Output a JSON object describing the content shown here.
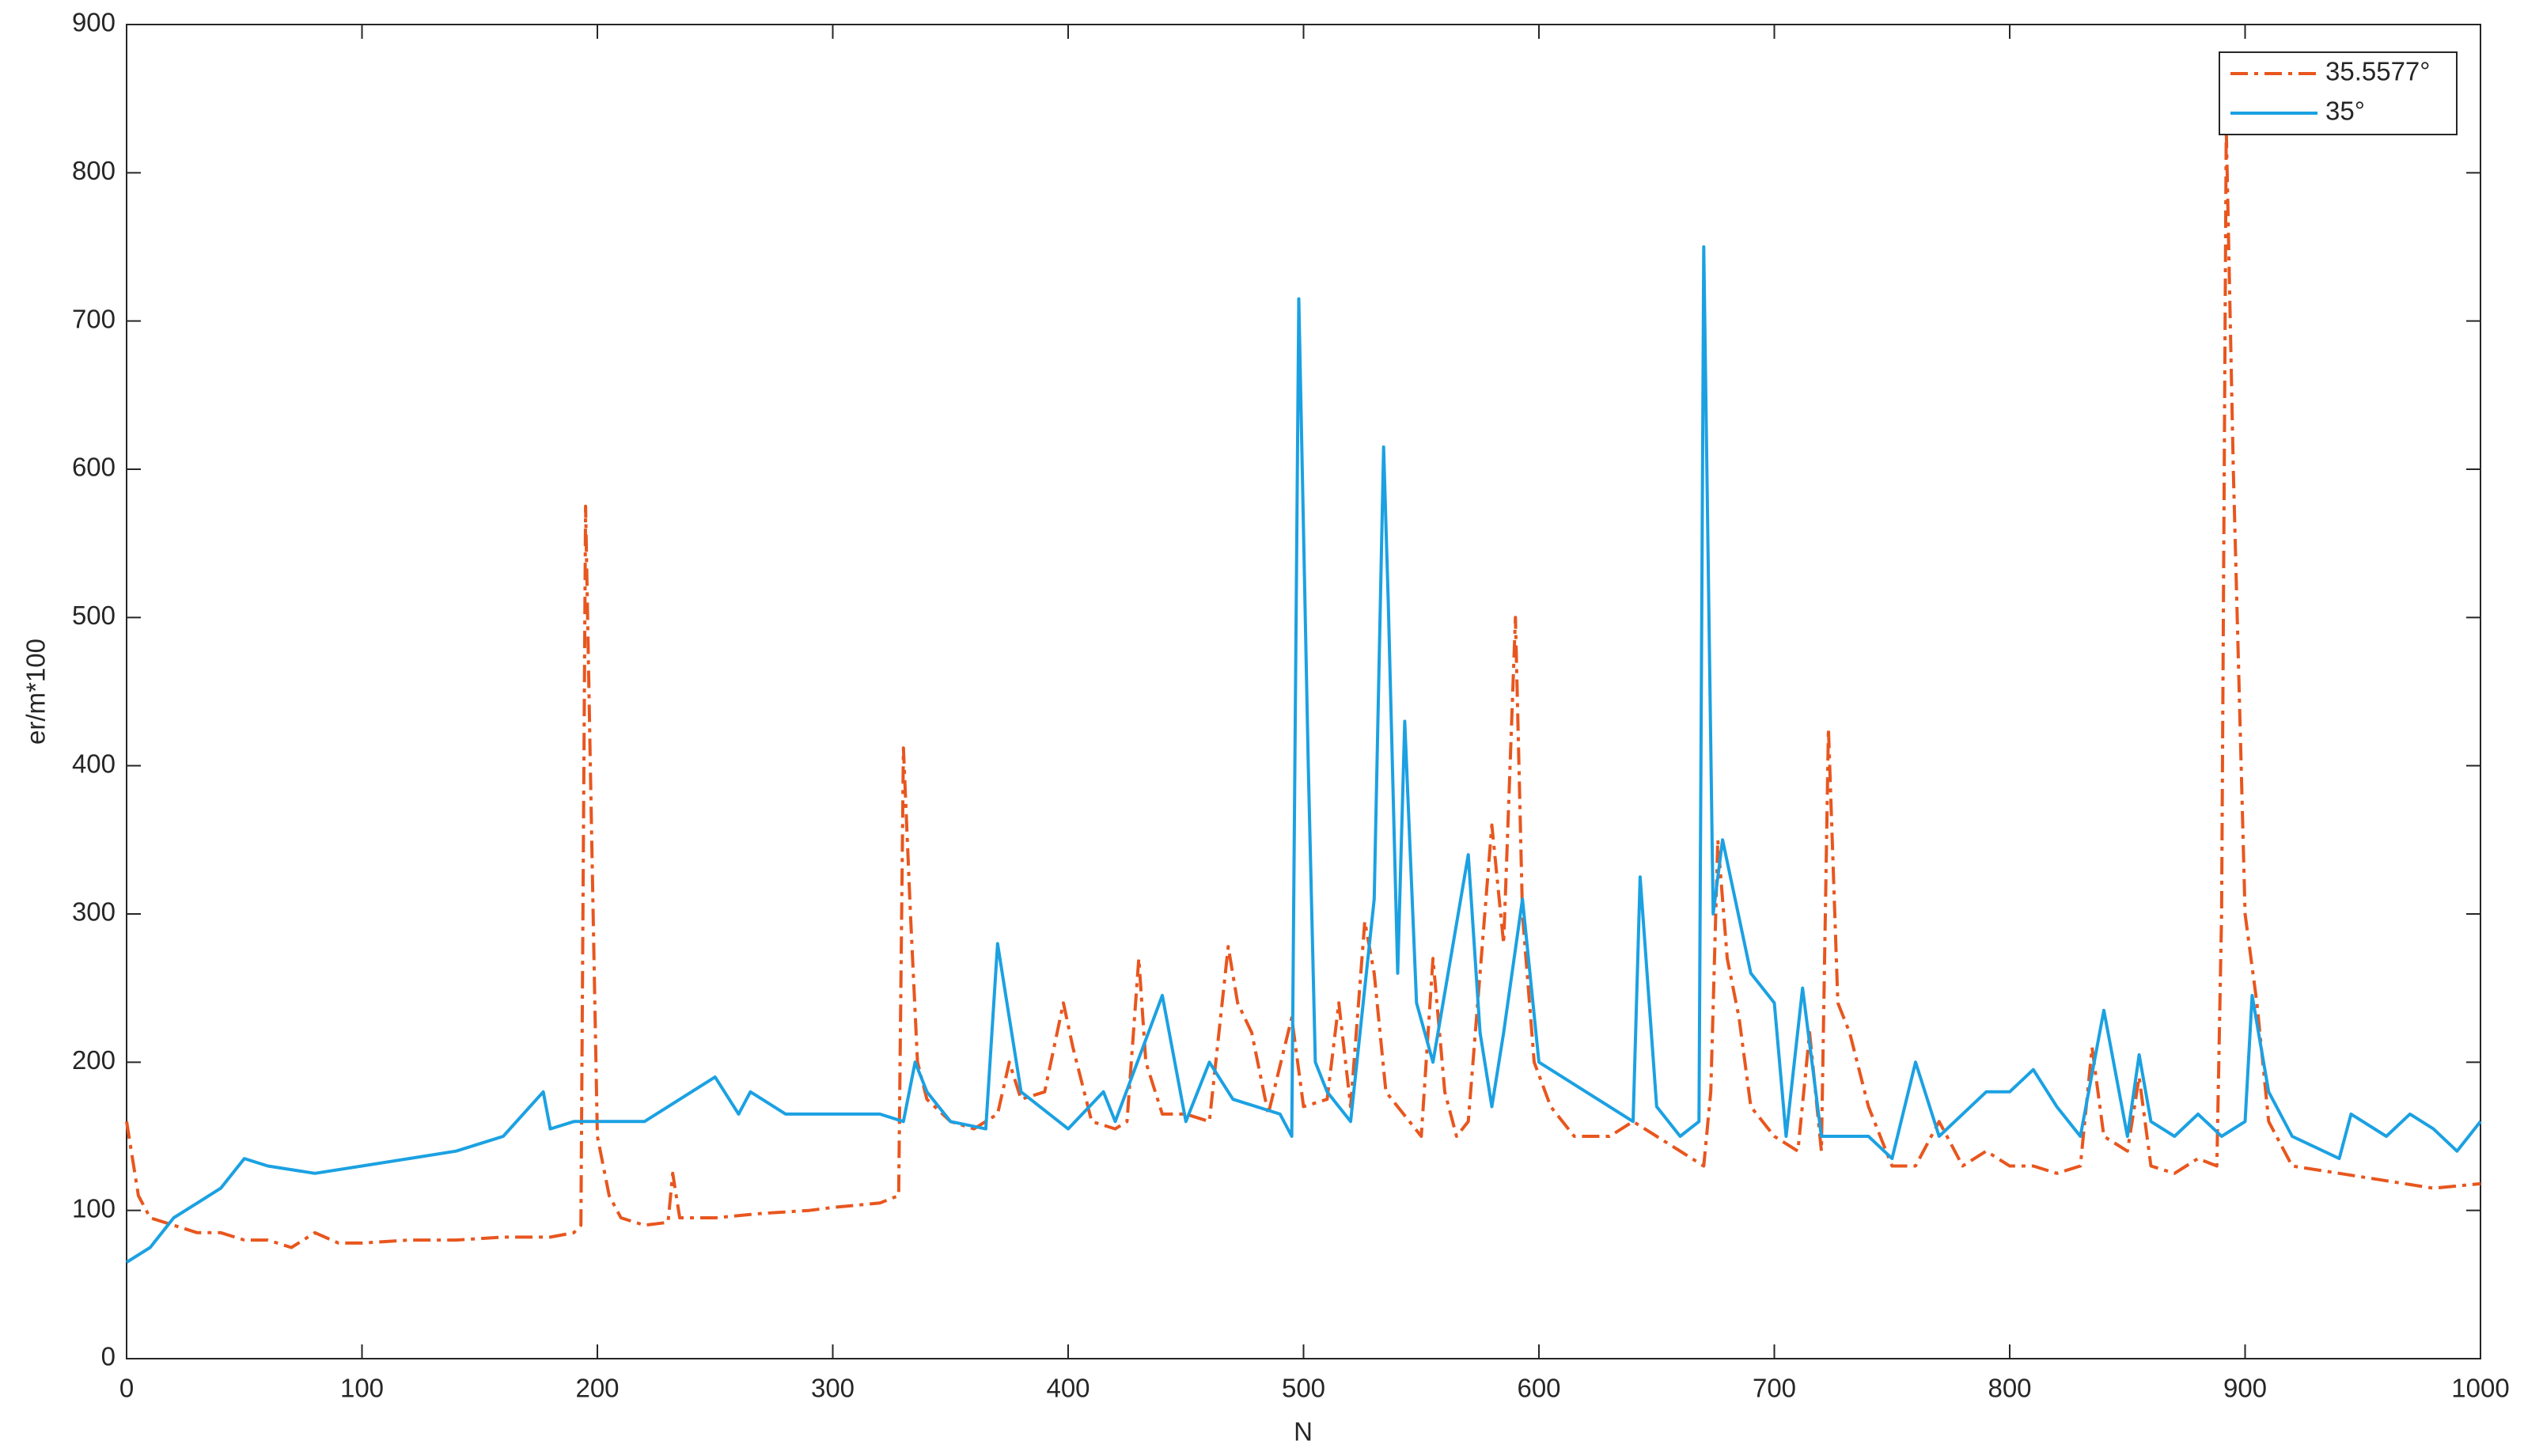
{
  "chart_data": {
    "type": "line",
    "xlabel": "N",
    "ylabel": "er/m*100",
    "xlim": [
      0,
      1000
    ],
    "xticks": [
      0,
      100,
      200,
      300,
      400,
      500,
      600,
      700,
      800,
      900,
      1000
    ],
    "ylim": [
      0,
      900
    ],
    "yticks": [
      0,
      100,
      200,
      300,
      400,
      500,
      600,
      700,
      800,
      900
    ],
    "grid": false,
    "legend": "upper right",
    "series": [
      {
        "name": "35.5577°",
        "color": "#e8561e",
        "dash": "dashdot",
        "x": [
          0,
          5,
          10,
          20,
          30,
          40,
          50,
          60,
          70,
          80,
          90,
          100,
          120,
          140,
          160,
          180,
          190,
          193,
          195,
          197,
          200,
          205,
          210,
          220,
          230,
          232,
          235,
          250,
          270,
          290,
          300,
          320,
          328,
          330,
          333,
          336,
          340,
          350,
          360,
          370,
          375,
          380,
          390,
          398,
          402,
          410,
          420,
          425,
          430,
          433,
          440,
          450,
          460,
          468,
          472,
          478,
          485,
          495,
          500,
          510,
          515,
          520,
          526,
          530,
          535,
          545,
          550,
          555,
          560,
          565,
          570,
          580,
          585,
          590,
          593,
          598,
          605,
          615,
          630,
          640,
          650,
          660,
          670,
          673,
          676,
          680,
          685,
          690,
          700,
          710,
          715,
          720,
          723,
          727,
          732,
          740,
          750,
          760,
          770,
          780,
          790,
          800,
          810,
          820,
          830,
          835,
          840,
          850,
          855,
          860,
          870,
          880,
          888,
          890,
          892,
          895,
          900,
          905,
          910,
          920,
          940,
          960,
          980,
          1000
        ],
        "values": [
          160,
          110,
          95,
          90,
          85,
          85,
          80,
          80,
          75,
          85,
          78,
          78,
          80,
          80,
          82,
          82,
          85,
          90,
          575,
          400,
          150,
          110,
          95,
          90,
          92,
          125,
          95,
          95,
          98,
          100,
          102,
          105,
          110,
          412,
          300,
          200,
          175,
          160,
          155,
          165,
          200,
          175,
          180,
          240,
          210,
          160,
          155,
          160,
          270,
          200,
          165,
          165,
          160,
          278,
          240,
          220,
          165,
          230,
          170,
          175,
          240,
          170,
          295,
          260,
          180,
          160,
          150,
          270,
          180,
          150,
          160,
          360,
          280,
          500,
          300,
          200,
          170,
          150,
          150,
          160,
          150,
          140,
          130,
          180,
          350,
          270,
          230,
          170,
          150,
          140,
          220,
          140,
          425,
          240,
          220,
          170,
          130,
          130,
          160,
          130,
          140,
          130,
          130,
          125,
          130,
          210,
          150,
          140,
          190,
          130,
          125,
          135,
          130,
          300,
          830,
          600,
          300,
          240,
          160,
          130,
          125,
          120,
          115,
          118
        ]
      },
      {
        "name": "35°",
        "color": "#1ba1e2",
        "dash": "solid",
        "x": [
          0,
          10,
          20,
          30,
          40,
          50,
          60,
          80,
          100,
          120,
          140,
          160,
          177,
          180,
          190,
          200,
          220,
          250,
          260,
          265,
          280,
          300,
          320,
          330,
          335,
          340,
          350,
          365,
          370,
          375,
          380,
          400,
          415,
          420,
          440,
          450,
          460,
          470,
          490,
          495,
          498,
          502,
          505,
          510,
          520,
          530,
          534,
          536,
          540,
          543,
          548,
          555,
          570,
          575,
          580,
          585,
          593,
          600,
          620,
          640,
          643,
          650,
          660,
          668,
          670,
          674,
          678,
          690,
          700,
          705,
          712,
          720,
          740,
          750,
          760,
          770,
          790,
          800,
          810,
          820,
          830,
          840,
          850,
          855,
          860,
          870,
          880,
          890,
          900,
          903,
          910,
          920,
          940,
          945,
          960,
          970,
          980,
          990,
          1000
        ],
        "values": [
          65,
          75,
          95,
          105,
          115,
          135,
          130,
          125,
          130,
          135,
          140,
          150,
          180,
          155,
          160,
          160,
          160,
          190,
          165,
          180,
          165,
          165,
          165,
          160,
          200,
          180,
          160,
          155,
          280,
          230,
          180,
          155,
          180,
          160,
          245,
          160,
          200,
          175,
          165,
          150,
          715,
          400,
          200,
          180,
          160,
          310,
          615,
          510,
          260,
          430,
          240,
          200,
          340,
          220,
          170,
          220,
          310,
          200,
          180,
          160,
          325,
          170,
          150,
          160,
          750,
          300,
          350,
          260,
          240,
          150,
          250,
          150,
          150,
          135,
          200,
          150,
          180,
          180,
          195,
          170,
          150,
          235,
          150,
          205,
          160,
          150,
          165,
          150,
          160,
          245,
          180,
          150,
          135,
          165,
          150,
          165,
          155,
          140,
          160
        ]
      }
    ]
  }
}
